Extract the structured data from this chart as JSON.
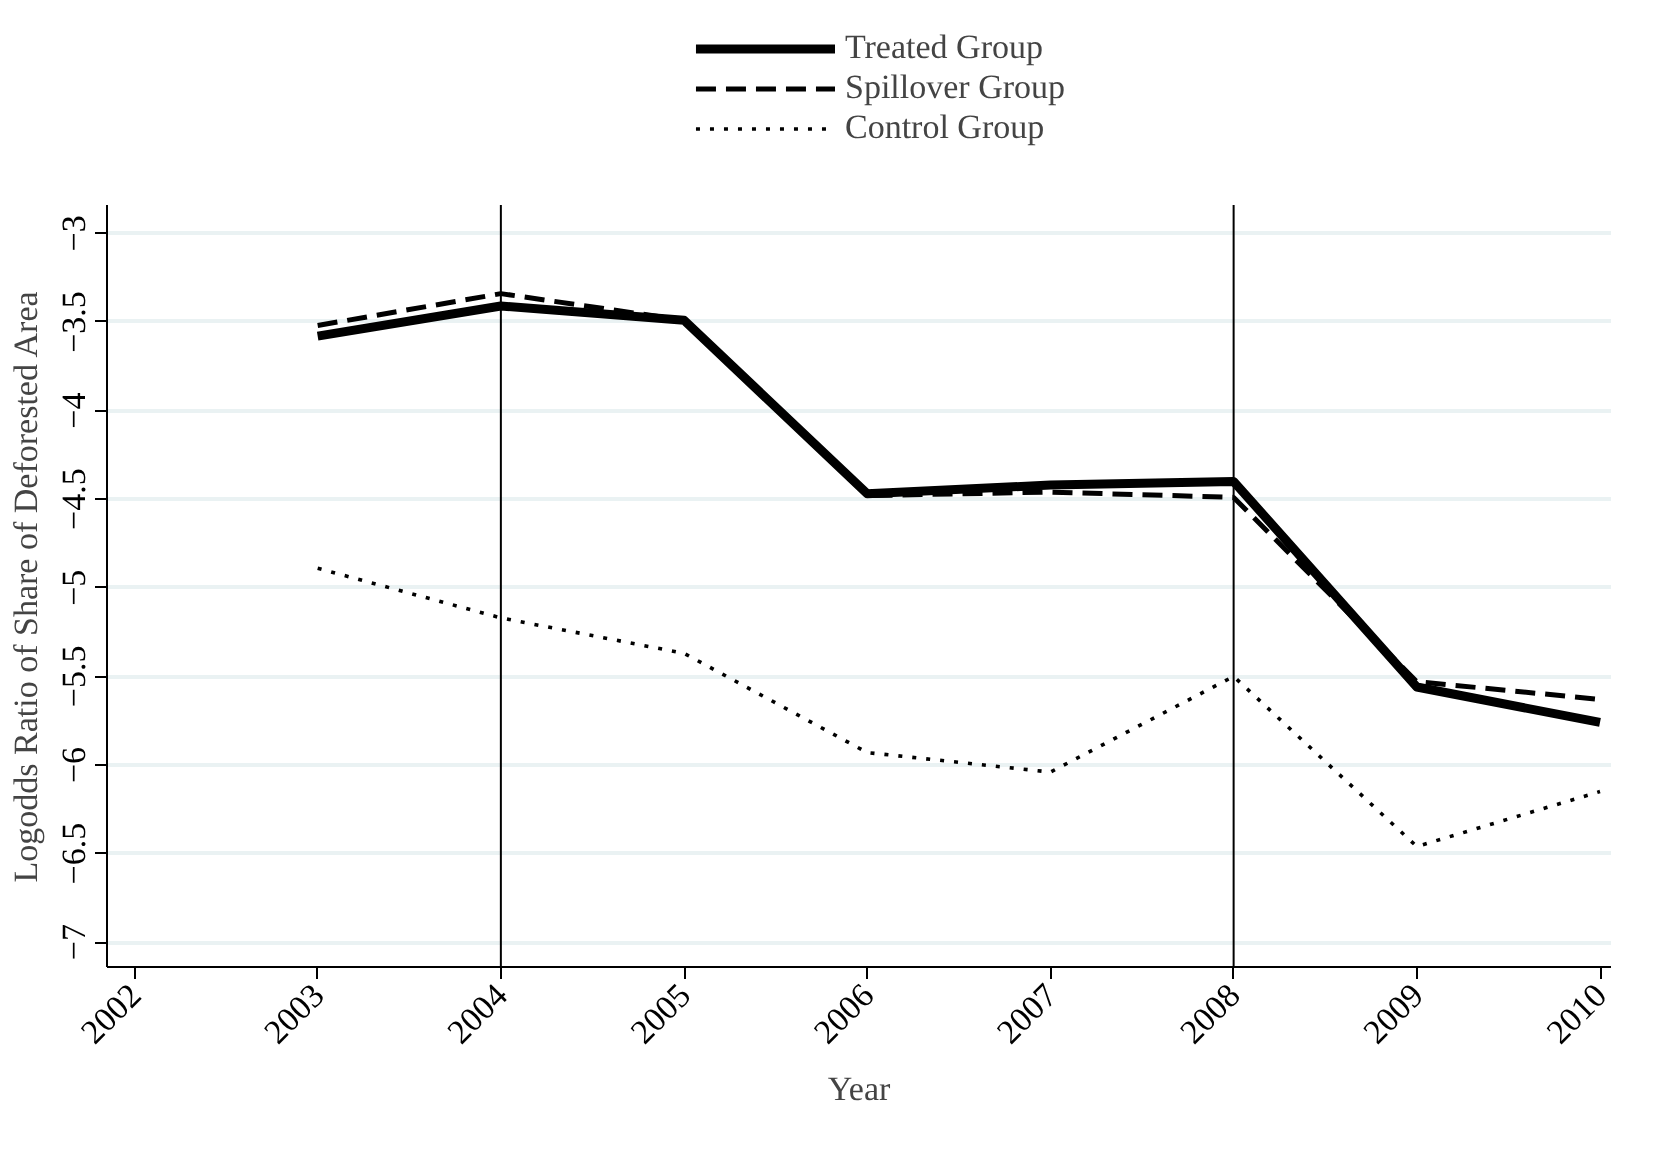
{
  "chart_data": {
    "type": "line",
    "xlabel": "Year",
    "ylabel": "Logodds Ratio of Share of Deforested Area",
    "x": [
      2003,
      2004,
      2005,
      2006,
      2007,
      2008,
      2009,
      2010
    ],
    "series": [
      {
        "name": "Treated Group",
        "color": "#000000",
        "line_style": "solid",
        "values": [
          -3.58,
          -3.41,
          -3.49,
          -4.47,
          -4.42,
          -4.4,
          -5.56,
          -5.76
        ]
      },
      {
        "name": "Spillover Group",
        "color": "#000000",
        "line_style": "dashed",
        "values": [
          -3.52,
          -3.34,
          -3.49,
          -4.48,
          -4.46,
          -4.49,
          -5.53,
          -5.63
        ]
      },
      {
        "name": "Control Group",
        "color": "#000000",
        "line_style": "dotted",
        "values": [
          -4.89,
          -5.17,
          -5.37,
          -5.93,
          -6.04,
          -5.5,
          -6.46,
          -6.15
        ]
      }
    ],
    "xlim": [
      2001.85,
      2010.06
    ],
    "xticks": [
      2002,
      2003,
      2004,
      2005,
      2006,
      2007,
      2008,
      2009,
      2010
    ],
    "ylim": [
      -7.14,
      -2.84
    ],
    "yticks": [
      {
        "value": -3,
        "label": "−3"
      },
      {
        "value": -3.5,
        "label": "−3.5"
      },
      {
        "value": -4,
        "label": "−4"
      },
      {
        "value": -4.5,
        "label": "−4.5"
      },
      {
        "value": -5,
        "label": "−5"
      },
      {
        "value": -5.5,
        "label": "−5.5"
      },
      {
        "value": -6,
        "label": "−6"
      },
      {
        "value": -6.5,
        "label": "−6.5"
      },
      {
        "value": -7,
        "label": "−7"
      }
    ],
    "ref_lines": [
      {
        "axis": "x",
        "value": 2004,
        "color": "#000000"
      },
      {
        "axis": "x",
        "value": 2008,
        "color": "#000000"
      }
    ],
    "grid": "y",
    "legend": "top",
    "marker": "none"
  }
}
